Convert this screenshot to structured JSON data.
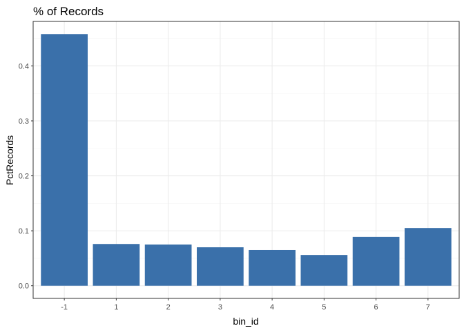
{
  "chart_data": {
    "type": "bar",
    "title": "% of Records",
    "xlabel": "bin_id",
    "ylabel": "PctRecords",
    "categories": [
      "-1",
      "1",
      "2",
      "3",
      "4",
      "5",
      "6",
      "7"
    ],
    "values": [
      0.458,
      0.076,
      0.075,
      0.07,
      0.065,
      0.056,
      0.089,
      0.105
    ],
    "ylim": [
      -0.023,
      0.481
    ],
    "yticks": [
      0.0,
      0.1,
      0.2,
      0.3,
      0.4
    ],
    "ytick_labels": [
      "0.0",
      "0.1",
      "0.2",
      "0.3",
      "0.4"
    ],
    "grid": true,
    "legend": "none",
    "colors": {
      "bar": "#3a70aa",
      "grid_major": "#ebebeb",
      "grid_minor": "#f4f4f4",
      "panel_border": "#333333",
      "tick_text": "#4d4d4d",
      "axis_title": "#000000"
    }
  }
}
